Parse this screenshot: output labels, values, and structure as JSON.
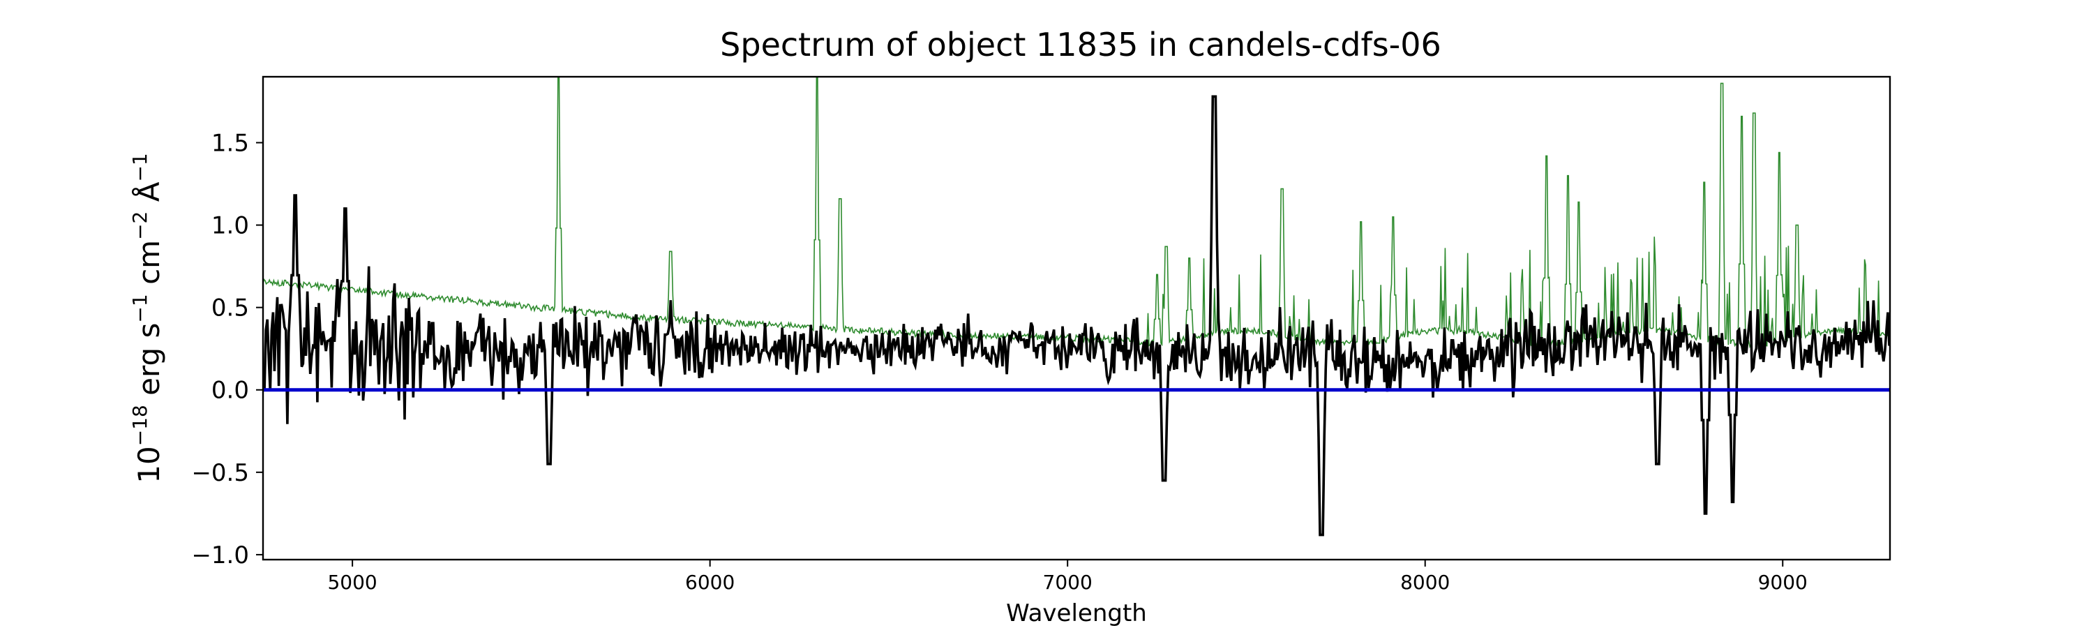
{
  "chart_data": {
    "type": "line",
    "title": "Spectrum of object 11835 in candels-cdfs-06",
    "xlabel": "Wavelength",
    "ylabel_base": "10",
    "ylabel_exp": "−18",
    "ylabel_rest": " erg s",
    "ylabel_s_exp": "−1",
    "ylabel_cm": " cm",
    "ylabel_cm_exp": "−2",
    "ylabel_A": " Å",
    "ylabel_A_exp": "−1",
    "xlim": [
      4750,
      9300
    ],
    "ylim": [
      -1.03,
      1.9
    ],
    "xticks": [
      5000,
      6000,
      7000,
      8000,
      9000
    ],
    "xtick_labels": [
      "5000",
      "6000",
      "7000",
      "8000",
      "9000"
    ],
    "yticks": [
      -1.0,
      -0.5,
      0.0,
      0.5,
      1.0,
      1.5
    ],
    "ytick_labels": [
      "−1.0",
      "−0.5",
      "0.0",
      "0.5",
      "1.0",
      "1.5"
    ],
    "series_colors": {
      "flux": "#000000",
      "error": "#2e8b2e",
      "zero": "#0000cc"
    },
    "zero_line": 0.0,
    "error_spikes": [
      {
        "x": 5577,
        "y": 1.9
      },
      {
        "x": 6300,
        "y": 1.9
      },
      {
        "x": 6364,
        "y": 1.16
      },
      {
        "x": 5890,
        "y": 0.84
      },
      {
        "x": 7250,
        "y": 0.7
      },
      {
        "x": 7276,
        "y": 0.87
      },
      {
        "x": 7340,
        "y": 0.8
      },
      {
        "x": 7600,
        "y": 1.22
      },
      {
        "x": 7820,
        "y": 1.02
      },
      {
        "x": 7910,
        "y": 1.05
      },
      {
        "x": 8340,
        "y": 1.42
      },
      {
        "x": 8400,
        "y": 1.3
      },
      {
        "x": 8430,
        "y": 1.14
      },
      {
        "x": 8780,
        "y": 1.26
      },
      {
        "x": 8830,
        "y": 1.86
      },
      {
        "x": 8885,
        "y": 1.66
      },
      {
        "x": 8920,
        "y": 1.68
      },
      {
        "x": 8990,
        "y": 1.44
      },
      {
        "x": 9040,
        "y": 1.0
      }
    ],
    "flux_features": [
      {
        "x": 7410,
        "y": 1.78
      },
      {
        "x": 7270,
        "y": -0.55
      },
      {
        "x": 7710,
        "y": -0.88
      },
      {
        "x": 8785,
        "y": -0.75
      },
      {
        "x": 8860,
        "y": -0.68
      },
      {
        "x": 5550,
        "y": -0.45
      },
      {
        "x": 4840,
        "y": 1.18
      },
      {
        "x": 4980,
        "y": 1.1
      },
      {
        "x": 8650,
        "y": -0.45
      }
    ]
  }
}
